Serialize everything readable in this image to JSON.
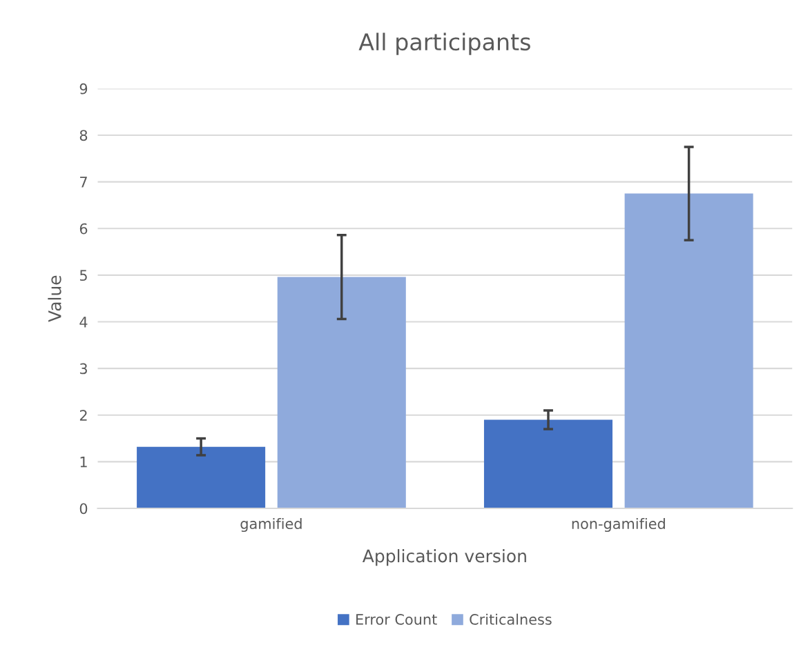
{
  "chart_data": {
    "type": "bar",
    "title": "All participants",
    "xlabel": "Application version",
    "ylabel": "Value",
    "categories": [
      "gamified",
      "non-gamified"
    ],
    "series": [
      {
        "name": "Error Count",
        "color": "#4472c4",
        "values": [
          1.32,
          1.9
        ],
        "errors": [
          0.18,
          0.2
        ]
      },
      {
        "name": "Criticalness",
        "color": "#8faadc",
        "values": [
          4.96,
          6.75
        ],
        "errors": [
          0.9,
          1.0
        ]
      }
    ],
    "ylim": [
      0,
      9
    ],
    "yticks": [
      0,
      1,
      2,
      3,
      4,
      5,
      6,
      7,
      8,
      9
    ],
    "grid": "y",
    "legend": "bottom"
  }
}
